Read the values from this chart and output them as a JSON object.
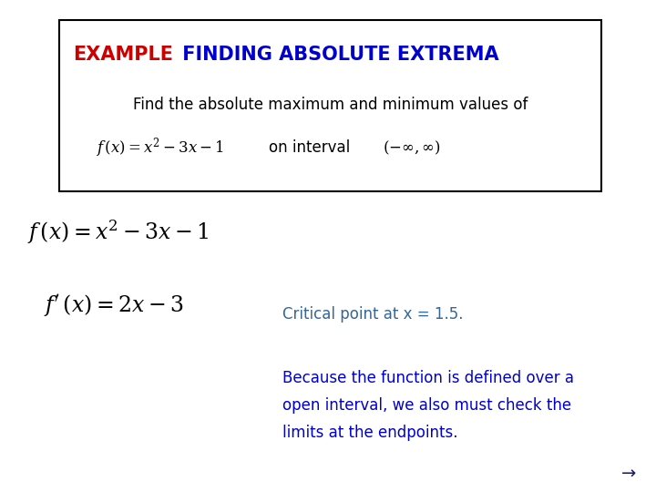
{
  "background_color": "#ffffff",
  "box_border_color": "#000000",
  "title_example": "EXAMPLE",
  "title_example_color": "#cc0000",
  "title_rest": " FINDING ABSOLUTE EXTREMA",
  "title_rest_color": "#0000cd",
  "box_line1": "Find the absolute maximum and minimum values of",
  "box_line1_color": "#000000",
  "box_interval_text": "on interval",
  "box_interval_formula": "$(-\\infty,\\infty)$",
  "formula1": "$f\\,(x)=x^2-3x-1$",
  "formula2": "$f'\\,(x)=2x-3$",
  "formula_color": "#000000",
  "critical_text": "Critical point at x = 1.5.",
  "critical_color": "#336699",
  "because_line1": "Because the function is defined over a",
  "because_line2": "open interval, we also must check the",
  "because_line3": "limits at the endpoints.",
  "because_color": "#0000cd",
  "arrow_text": "→",
  "arrow_color": "#1a1a6e",
  "fig_width": 7.2,
  "fig_height": 5.4,
  "dpi": 100
}
